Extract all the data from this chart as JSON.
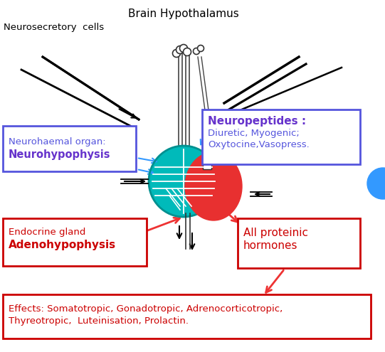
{
  "bg_color": "#ffffff",
  "brain_hypothalamus_label": "Brain Hypothalamus",
  "neurosecretory_label": "Neurosecretory  cells",
  "neurohaemal_box_text1": "Neurohaemal organ:",
  "neurohaemal_box_text2": "Neurohypophysis",
  "neuropeptides_box_title": "Neuropeptides :",
  "neuropeptides_box_line1": "Diuretic, Myogenic;",
  "neuropeptides_box_line2": "Oxytocine,Vasopress.",
  "endocrine_box_text1": "Endocrine gland",
  "endocrine_box_text2": "Adenohypophysis",
  "allproteinic_text1": "All proteinic",
  "allproteinic_text2": "hormones",
  "effects_text1": "Effects: Somatotropic, Gonadotropic, Adrenocorticotropic,",
  "effects_text2": "Thyreotropic,  Luteinisation, Prolactin.",
  "teal_color": "#00BABA",
  "teal_dark": "#009090",
  "red_color": "#CC0000",
  "red_fill": "#E83030",
  "purple_color": "#6633CC",
  "blue_box_color": "#5555DD",
  "blue_arrow_color": "#3399FF",
  "arrow_red": "#EE3333",
  "arrow_black": "#111111"
}
